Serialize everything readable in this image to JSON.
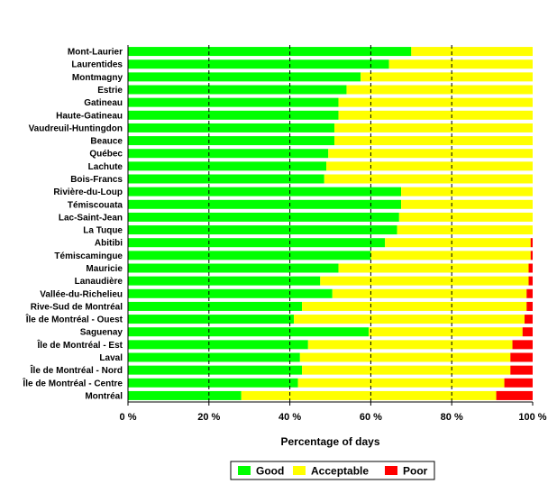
{
  "chart_data": {
    "type": "bar",
    "orientation": "horizontal",
    "stacked": true,
    "title": "",
    "xlabel": "Percentage of days",
    "ylabel": "",
    "xlim": [
      0,
      100
    ],
    "xticks": [
      0,
      20,
      40,
      60,
      80,
      100
    ],
    "xtick_labels": [
      "0 %",
      "20 %",
      "40 %",
      "60 %",
      "80 %",
      "100 %"
    ],
    "grid": "vertical dashed",
    "legend_position": "bottom",
    "categories": [
      "Mont-Laurier",
      "Laurentides",
      "Montmagny",
      "Estrie",
      "Gatineau",
      "Haute-Gatineau",
      "Vaudreuil-Huntingdon",
      "Beauce",
      "Québec",
      "Lachute",
      "Bois-Francs",
      "Rivière-du-Loup",
      "Témiscouata",
      "Lac-Saint-Jean",
      "La Tuque",
      "Abitibi",
      "Témiscamingue",
      "Mauricie",
      "Lanaudière",
      "Vallée-du-Richelieu",
      "Rive-Sud de Montréal",
      "Île de Montréal - Ouest",
      "Saguenay",
      "Île de Montréal - Est",
      "Laval",
      "Île de Montréal - Nord",
      "Île de Montréal - Centre",
      "Montréal"
    ],
    "series": [
      {
        "name": "Good",
        "color": "#00ff00",
        "values": [
          70.0,
          64.5,
          57.5,
          54.0,
          52.0,
          52.0,
          51.0,
          51.0,
          49.5,
          49.0,
          48.5,
          67.5,
          67.5,
          67.0,
          66.5,
          63.5,
          60.0,
          52.0,
          47.5,
          50.5,
          43.0,
          41.0,
          59.5,
          44.5,
          42.5,
          43.0,
          42.0,
          28.0
        ]
      },
      {
        "name": "Acceptable",
        "color": "#ffff00",
        "values": [
          30.0,
          35.5,
          42.5,
          46.0,
          48.0,
          48.0,
          49.0,
          49.0,
          50.5,
          51.0,
          51.5,
          32.5,
          32.5,
          33.0,
          33.5,
          36.0,
          39.5,
          47.0,
          51.5,
          48.0,
          55.5,
          57.0,
          38.0,
          50.5,
          52.0,
          51.5,
          51.0,
          63.0
        ]
      },
      {
        "name": "Poor",
        "color": "#ff0000",
        "values": [
          0.0,
          0.0,
          0.0,
          0.0,
          0.0,
          0.0,
          0.0,
          0.0,
          0.0,
          0.0,
          0.0,
          0.0,
          0.0,
          0.0,
          0.0,
          0.5,
          0.5,
          1.0,
          1.0,
          1.5,
          1.5,
          2.0,
          2.5,
          5.0,
          5.5,
          5.5,
          7.0,
          9.0
        ]
      }
    ]
  }
}
